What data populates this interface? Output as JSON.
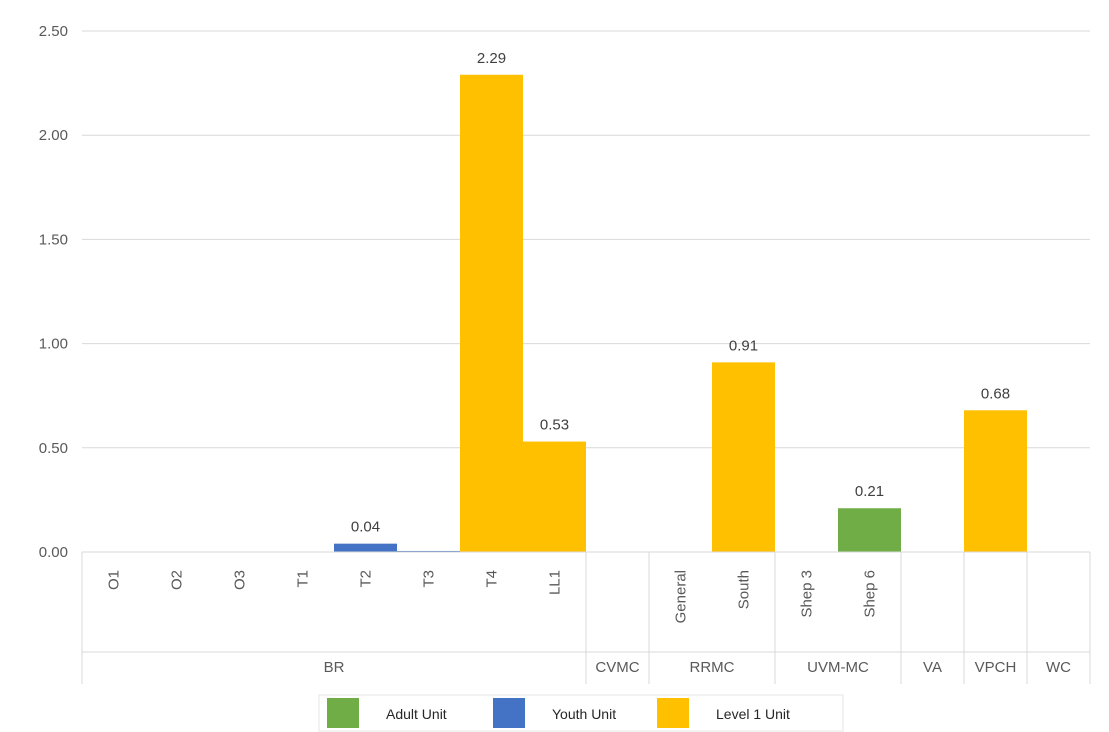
{
  "chart_data": {
    "type": "bar",
    "title": "",
    "xlabel": "",
    "ylabel": "",
    "ylim": [
      0,
      2.5
    ],
    "yticks": [
      "0.00",
      "0.50",
      "1.00",
      "1.50",
      "2.00",
      "2.50"
    ],
    "grid": true,
    "legend_position": "bottom",
    "groups": [
      {
        "name": "BR",
        "categories": [
          "O1",
          "O2",
          "O3",
          "T1",
          "T2",
          "T3",
          "T4",
          "LL1"
        ]
      },
      {
        "name": "CVMC",
        "categories": [
          ""
        ]
      },
      {
        "name": "RRMC",
        "categories": [
          "General",
          "South"
        ]
      },
      {
        "name": "UVM-MC",
        "categories": [
          "Shep 3",
          "Shep 6"
        ]
      },
      {
        "name": "VA",
        "categories": [
          ""
        ]
      },
      {
        "name": "VPCH",
        "categories": [
          ""
        ]
      },
      {
        "name": "WC",
        "categories": [
          ""
        ]
      }
    ],
    "series": [
      {
        "name": "Adult Unit",
        "color": "#70AD47",
        "values": [
          null,
          null,
          null,
          null,
          null,
          null,
          null,
          null,
          null,
          null,
          null,
          null,
          0.21,
          null,
          null,
          null
        ]
      },
      {
        "name": "Youth Unit",
        "color": "#4472C4",
        "values": [
          null,
          null,
          null,
          null,
          0.04,
          0.005,
          null,
          null,
          null,
          null,
          null,
          null,
          null,
          null,
          null,
          null
        ]
      },
      {
        "name": "Level 1 Unit",
        "color": "#FFC000",
        "values": [
          null,
          null,
          null,
          null,
          null,
          null,
          2.29,
          0.53,
          null,
          null,
          0.91,
          null,
          null,
          null,
          0.68,
          null
        ]
      }
    ],
    "data_labels": [
      "",
      "",
      "",
      "",
      "0.04",
      "",
      "2.29",
      "0.53",
      "",
      "",
      "0.91",
      "",
      "0.21",
      "",
      "0.68",
      ""
    ]
  }
}
